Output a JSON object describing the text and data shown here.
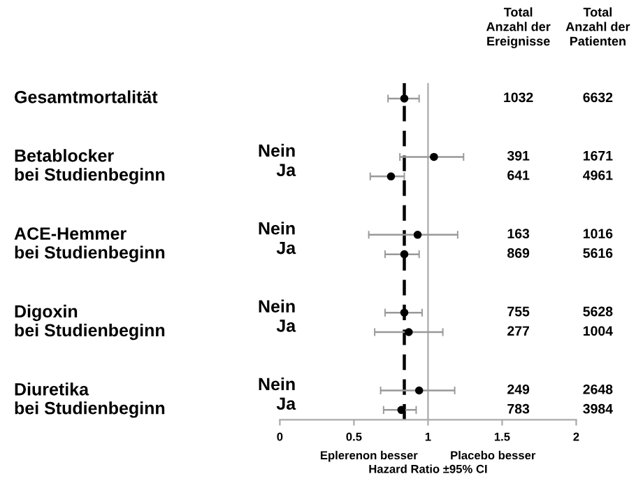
{
  "chart_data": {
    "type": "scatter",
    "orientation": "horizontal",
    "xlabel": "Hazard Ratio ±95% CI",
    "categories": [
      null,
      null,
      null,
      "Nein",
      "Ja",
      null,
      null,
      "Nein",
      "Ja",
      null,
      null,
      "Nein",
      "Ja",
      null,
      null,
      "Nein",
      "Ja"
    ],
    "series": [
      {
        "color": "#000000",
        "values": [
          0.84,
          null,
          null,
          1.04,
          0.75,
          null,
          null,
          0.93,
          0.84,
          null,
          null,
          0.84,
          0.87,
          null,
          null,
          0.94,
          0.82
        ],
        "errors": [
          [
            0.73,
            0.94
          ],
          null,
          null,
          [
            0.81,
            1.24
          ],
          [
            0.61,
            0.84
          ],
          null,
          null,
          [
            0.6,
            1.2
          ],
          [
            0.71,
            0.94
          ],
          null,
          null,
          [
            0.71,
            0.96
          ],
          [
            0.64,
            1.1
          ],
          null,
          null,
          [
            0.68,
            1.18
          ],
          [
            0.7,
            0.92
          ]
        ]
      }
    ],
    "marker": "circle",
    "xlim": [
      0,
      2
    ],
    "xticks": [
      0,
      0.5,
      1,
      1.5,
      2
    ],
    "ref_lines": [
      {
        "axis": "x",
        "value": 0.84,
        "color": "#000000",
        "line_style": "dashed"
      },
      {
        "axis": "x",
        "value": 1,
        "color": "#aaaaaa",
        "line_style": "solid"
      }
    ],
    "annotations": [
      "Total\nAnzahl der\nEreignisse",
      "Total\nAnzahl der\nPatienten",
      "1032",
      "6632",
      "391",
      "1671",
      "641",
      "4961",
      "163",
      "1016",
      "869",
      "5616",
      "755",
      "5628",
      "277",
      "1004",
      "249",
      "2648",
      "783",
      "3984",
      "Gesamtmortalität",
      "Betablocker\nbei Studienbeginn",
      "ACE-Hemmer\nbei Studienbeginn",
      "Digoxin\nbei Studienbeginn",
      "Diuretika\nbei Studienbeginn",
      "Eplerenon besser",
      "Placebo besser"
    ],
    "grid": false,
    "legend": false
  }
}
